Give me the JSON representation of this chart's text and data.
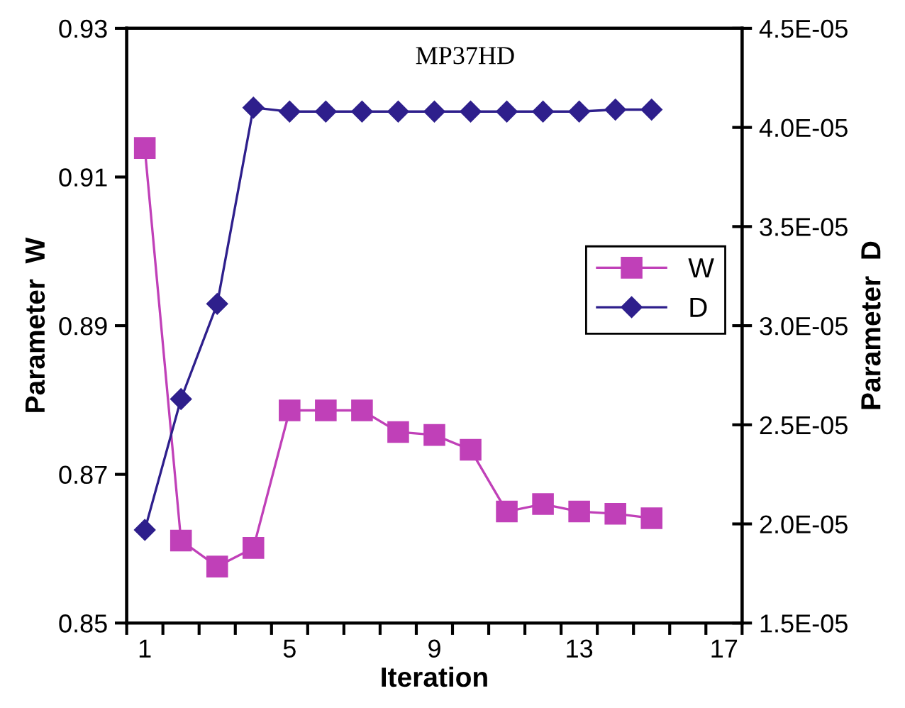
{
  "chart_data": {
    "type": "line",
    "title": "MP37HD",
    "xlabel": "Iteration",
    "ylabel": "Parameter  W",
    "y2label": "Parameter  D",
    "x": [
      1,
      2,
      3,
      4,
      5,
      6,
      7,
      8,
      9,
      10,
      11,
      12,
      13,
      14,
      15
    ],
    "series": [
      {
        "name": "W",
        "color": "#c040b8",
        "marker": "square",
        "values": [
          0.9139,
          0.8611,
          0.8576,
          0.8601,
          0.8786,
          0.8786,
          0.8786,
          0.8757,
          0.8753,
          0.8733,
          0.865,
          0.866,
          0.865,
          0.8647,
          0.8641
        ]
      },
      {
        "name": "D",
        "color": "#2e1f8c",
        "marker": "diamond",
        "axis": "y2",
        "values": [
          1.97e-05,
          2.63e-05,
          3.11e-05,
          4.1e-05,
          4.08e-05,
          4.08e-05,
          4.08e-05,
          4.08e-05,
          4.08e-05,
          4.08e-05,
          4.08e-05,
          4.08e-05,
          4.08e-05,
          4.09e-05,
          4.09e-05
        ]
      }
    ],
    "xlim": [
      0.5,
      17.5
    ],
    "xticks": [
      1,
      5,
      9,
      13,
      17,
      {
        "value": 0.5,
        "label": null
      },
      {
        "value": 1.5,
        "label": null
      },
      {
        "value": 2.5,
        "label": null
      },
      {
        "value": 3.5,
        "label": null
      },
      {
        "value": 4.5,
        "label": null
      },
      {
        "value": 5.5,
        "label": null
      },
      {
        "value": 6.5,
        "label": null
      },
      {
        "value": 7.5,
        "label": null
      },
      {
        "value": 8.5,
        "label": null
      },
      {
        "value": 9.5,
        "label": null
      },
      {
        "value": 10.5,
        "label": null
      },
      {
        "value": 11.5,
        "label": null
      },
      {
        "value": 12.5,
        "label": null
      },
      {
        "value": 13.5,
        "label": null
      },
      {
        "value": 14.5,
        "label": null
      },
      {
        "value": 15.5,
        "label": null
      },
      {
        "value": 16.5,
        "label": null
      },
      {
        "value": 17.5,
        "label": null
      }
    ],
    "ylim": [
      0.85,
      0.93
    ],
    "yticks": [
      0.85,
      0.87,
      0.89,
      0.91,
      0.93
    ],
    "y2lim": [
      1.5e-05,
      4.5e-05
    ],
    "y2ticks": [
      {
        "value": 1.5e-05,
        "label": "1.5E-05"
      },
      {
        "value": 2e-05,
        "label": "2.0E-05"
      },
      {
        "value": 2.5e-05,
        "label": "2.5E-05"
      },
      {
        "value": 3e-05,
        "label": "3.0E-05"
      },
      {
        "value": 3.5e-05,
        "label": "3.5E-05"
      },
      {
        "value": 4e-05,
        "label": "4.0E-05"
      },
      {
        "value": 4.5e-05,
        "label": "4.5E-05"
      }
    ],
    "grid": false,
    "legend": "right",
    "line_style": "solid"
  }
}
